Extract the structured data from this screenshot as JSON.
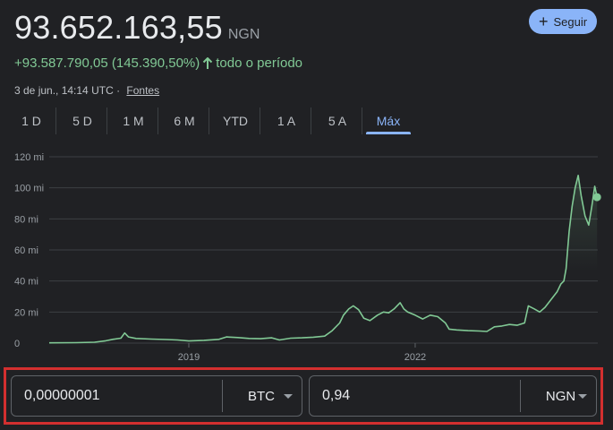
{
  "header": {
    "price": "93.652.163,55",
    "currency": "NGN",
    "follow_label": "Seguir",
    "change": "+93.587.790,05 (145.390,50%)",
    "change_period": "todo o período",
    "timestamp": "3 de jun., 14:14 UTC",
    "separator": "·",
    "sources_link": "Fontes"
  },
  "tabs": [
    {
      "label": "1 D"
    },
    {
      "label": "5 D"
    },
    {
      "label": "1 M"
    },
    {
      "label": "6 M"
    },
    {
      "label": "YTD"
    },
    {
      "label": "1 A"
    },
    {
      "label": "5 A"
    },
    {
      "label": "Máx",
      "active": true
    }
  ],
  "colors": {
    "accent": "#8ab4f8",
    "positive": "#81c995",
    "line": "#81c995",
    "highlight_border": "#d32f2f"
  },
  "chart_data": {
    "type": "line",
    "title": "",
    "xlabel": "",
    "ylabel": "",
    "x_ticks": [
      "2019",
      "2022"
    ],
    "y_ticks": [
      "0",
      "20 mi",
      "40 mi",
      "60 mi",
      "80 mi",
      "100 mi",
      "120 mi"
    ],
    "ylim": [
      0,
      120
    ],
    "y_unit": "mi",
    "xlim": [
      2017.15,
      2024.42
    ],
    "grid": true,
    "series": [
      {
        "values": [
          [
            2017.15,
            0.15
          ],
          [
            2017.5,
            0.3
          ],
          [
            2017.75,
            0.6
          ],
          [
            2017.9,
            1.5
          ],
          [
            2018.0,
            2.5
          ],
          [
            2018.1,
            3.2
          ],
          [
            2018.15,
            6.5
          ],
          [
            2018.2,
            4.0
          ],
          [
            2018.3,
            3.0
          ],
          [
            2018.5,
            2.6
          ],
          [
            2018.7,
            2.3
          ],
          [
            2018.85,
            2.0
          ],
          [
            2019.0,
            1.4
          ],
          [
            2019.2,
            1.8
          ],
          [
            2019.4,
            2.4
          ],
          [
            2019.5,
            4.0
          ],
          [
            2019.65,
            3.6
          ],
          [
            2019.8,
            3.0
          ],
          [
            2019.95,
            2.8
          ],
          [
            2020.1,
            3.4
          ],
          [
            2020.2,
            2.0
          ],
          [
            2020.35,
            3.2
          ],
          [
            2020.5,
            3.4
          ],
          [
            2020.65,
            3.8
          ],
          [
            2020.8,
            4.5
          ],
          [
            2020.9,
            8.0
          ],
          [
            2021.0,
            13.0
          ],
          [
            2021.05,
            18.0
          ],
          [
            2021.12,
            22.0
          ],
          [
            2021.18,
            24.0
          ],
          [
            2021.25,
            21.5
          ],
          [
            2021.32,
            16.0
          ],
          [
            2021.4,
            14.5
          ],
          [
            2021.5,
            18.0
          ],
          [
            2021.58,
            20.0
          ],
          [
            2021.65,
            19.5
          ],
          [
            2021.72,
            22.0
          ],
          [
            2021.8,
            26.0
          ],
          [
            2021.85,
            22.0
          ],
          [
            2021.9,
            20.0
          ],
          [
            2022.0,
            18.0
          ],
          [
            2022.1,
            15.5
          ],
          [
            2022.2,
            18.0
          ],
          [
            2022.3,
            17.0
          ],
          [
            2022.4,
            13.0
          ],
          [
            2022.45,
            9.0
          ],
          [
            2022.55,
            8.5
          ],
          [
            2022.7,
            8.0
          ],
          [
            2022.85,
            7.8
          ],
          [
            2022.95,
            7.5
          ],
          [
            2023.05,
            10.5
          ],
          [
            2023.15,
            11.0
          ],
          [
            2023.25,
            12.0
          ],
          [
            2023.35,
            11.5
          ],
          [
            2023.45,
            13.0
          ],
          [
            2023.5,
            24.0
          ],
          [
            2023.58,
            22.0
          ],
          [
            2023.65,
            20.0
          ],
          [
            2023.72,
            23.0
          ],
          [
            2023.8,
            28.0
          ],
          [
            2023.88,
            33.0
          ],
          [
            2023.93,
            38.0
          ],
          [
            2023.97,
            40.0
          ],
          [
            2024.0,
            48.0
          ],
          [
            2024.04,
            72.0
          ],
          [
            2024.08,
            88.0
          ],
          [
            2024.12,
            100.0
          ],
          [
            2024.16,
            108.0
          ],
          [
            2024.2,
            95.0
          ],
          [
            2024.25,
            82.0
          ],
          [
            2024.3,
            76.0
          ],
          [
            2024.34,
            88.0
          ],
          [
            2024.38,
            101.0
          ],
          [
            2024.41,
            94.0
          ]
        ]
      }
    ]
  },
  "converter": {
    "from_value": "0,00000001",
    "from_currency": "BTC",
    "to_value": "0,94",
    "to_currency": "NGN"
  }
}
